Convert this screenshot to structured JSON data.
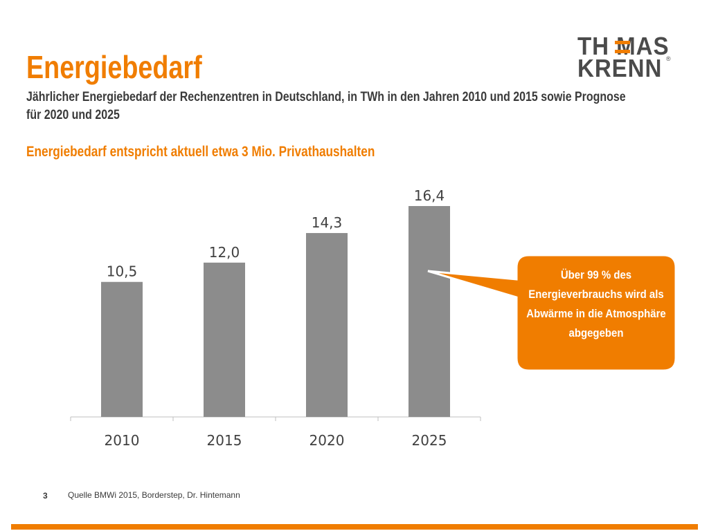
{
  "slide": {
    "title": "Energiebedarf",
    "subtitle": "Jährlicher Energiebedarf der Rechenzentren in Deutschland, in TWh in den Jahren 2010 und 2015 sowie Prognose für 2020 und 2025",
    "headline": "Energiebedarf entspricht aktuell etwa 3 Mio. Privathaushalten",
    "page_number": "3",
    "source": "Quelle BMWi 2015, Borderstep, Dr. Hintemann"
  },
  "logo": {
    "line1": "TH MAS",
    "line2": "KRENN",
    "registered": "®"
  },
  "callout": {
    "text": "Über 99 % des Energieverbrauchs wird als Abwärme in die Atmosphäre abgegeben"
  },
  "colors": {
    "accent": "#f07d00",
    "bar": "#8c8c8c",
    "text_dark": "#3a3a3a",
    "logo_gray": "#4b4b4b"
  },
  "chart_data": {
    "type": "bar",
    "categories": [
      "2010",
      "2015",
      "2020",
      "2025"
    ],
    "values": [
      10.5,
      12.0,
      14.3,
      16.4
    ],
    "value_labels": [
      "10,5",
      "12,0",
      "14,3",
      "16,4"
    ],
    "title": "",
    "xlabel": "",
    "ylabel": "",
    "ylim": [
      0,
      16.4
    ],
    "grid": false,
    "legend": "none"
  }
}
